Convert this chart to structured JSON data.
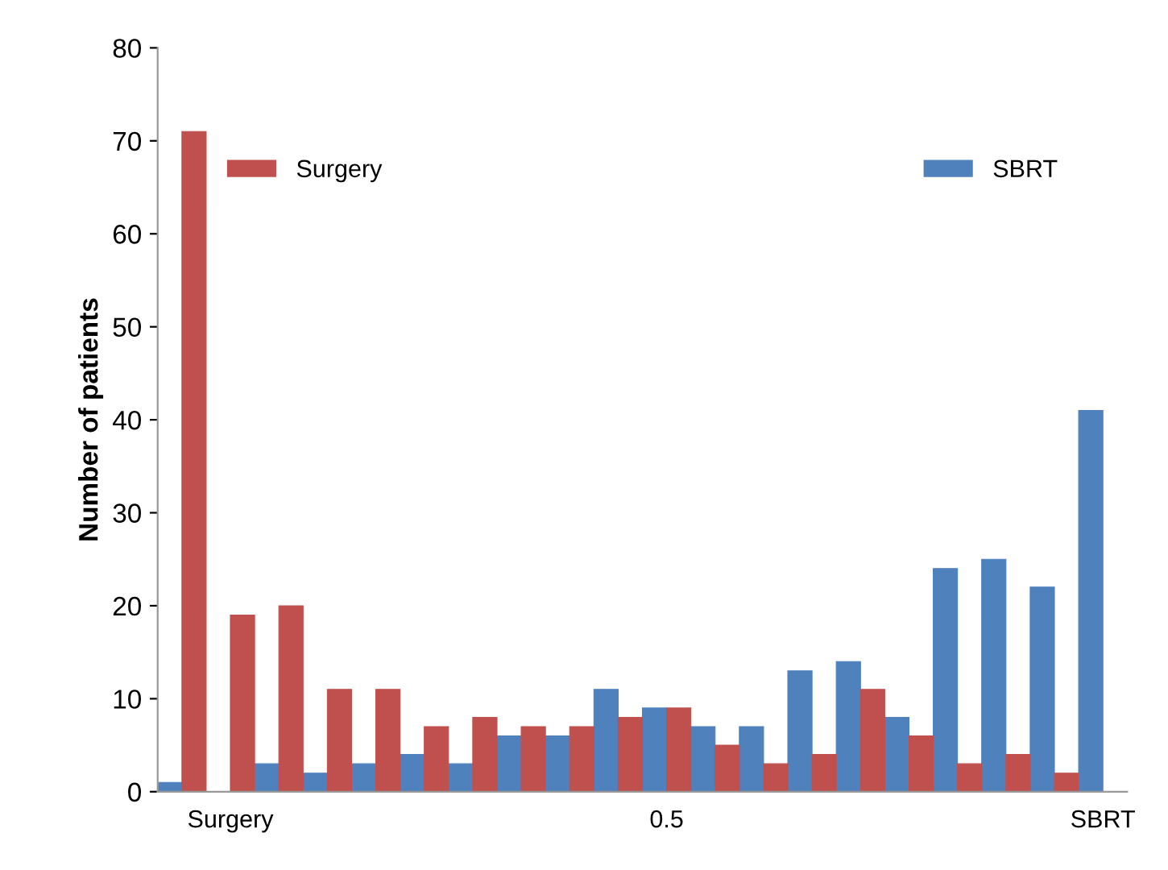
{
  "chart_data": {
    "type": "bar",
    "ylabel": "Number of patients",
    "categories": [
      null,
      "Surgery",
      null,
      null,
      null,
      null,
      null,
      null,
      null,
      null,
      "0.5",
      null,
      null,
      null,
      null,
      null,
      null,
      null,
      null,
      "SBRT"
    ],
    "series": [
      {
        "name": "SBRT",
        "color": "#4f81bd",
        "values": [
          1,
          0,
          3,
          2,
          3,
          4,
          3,
          6,
          6,
          11,
          9,
          7,
          7,
          13,
          14,
          8,
          24,
          25,
          22,
          41
        ]
      },
      {
        "name": "Surgery",
        "color": "#c0504d",
        "values": [
          71,
          19,
          20,
          11,
          11,
          7,
          8,
          7,
          7,
          8,
          9,
          5,
          3,
          4,
          11,
          6,
          3,
          4,
          2,
          0
        ]
      }
    ],
    "ylim": [
      0,
      80
    ],
    "yticks": [
      0,
      10,
      20,
      30,
      40,
      50,
      60,
      70,
      80
    ],
    "grid": false,
    "legend": "top"
  }
}
